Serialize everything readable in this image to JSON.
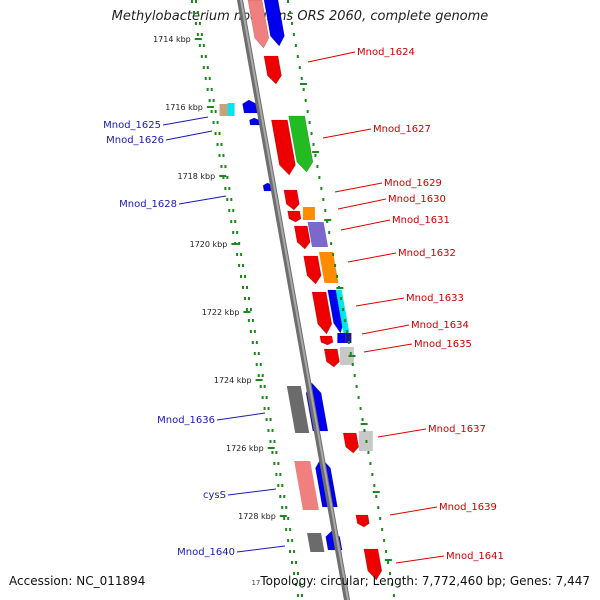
{
  "title": "Methylobacterium nodulans ORS 2060, complete genome",
  "accession": "Accession: NC_011894",
  "topology": "Topology: circular; Length: 7,772,460 bp; Genes: 7,447",
  "topology_fragment": "17",
  "colors": {
    "backbone": "#8f8f8f",
    "tick": "#1a8a1a",
    "forward_label": "#cc0000",
    "reverse_label": "#1a1ab4",
    "leader_forward": "#e00000",
    "leader_reverse": "#1a1ab4"
  },
  "ticks": [
    {
      "label": "1714 kbp"
    },
    {
      "label": "1716 kbp"
    },
    {
      "label": "1718 kbp"
    },
    {
      "label": "1720 kbp"
    },
    {
      "label": "1722 kbp"
    },
    {
      "label": "1724 kbp"
    },
    {
      "label": "1726 kbp"
    },
    {
      "label": "1728 kbp"
    }
  ],
  "gene_labels_right": [
    {
      "text": "Mnod_1624"
    },
    {
      "text": "Mnod_1627"
    },
    {
      "text": "Mnod_1629"
    },
    {
      "text": "Mnod_1630"
    },
    {
      "text": "Mnod_1631"
    },
    {
      "text": "Mnod_1632"
    },
    {
      "text": "Mnod_1633"
    },
    {
      "text": "Mnod_1634"
    },
    {
      "text": "Mnod_1635"
    },
    {
      "text": "Mnod_1637"
    },
    {
      "text": "Mnod_1639"
    },
    {
      "text": "Mnod_1641"
    }
  ],
  "gene_labels_left": [
    {
      "text": "Mnod_1625"
    },
    {
      "text": "Mnod_1626"
    },
    {
      "text": "Mnod_1628"
    },
    {
      "text": "Mnod_1636"
    },
    {
      "text": "cysS"
    },
    {
      "text": "Mnod_1640"
    }
  ]
}
